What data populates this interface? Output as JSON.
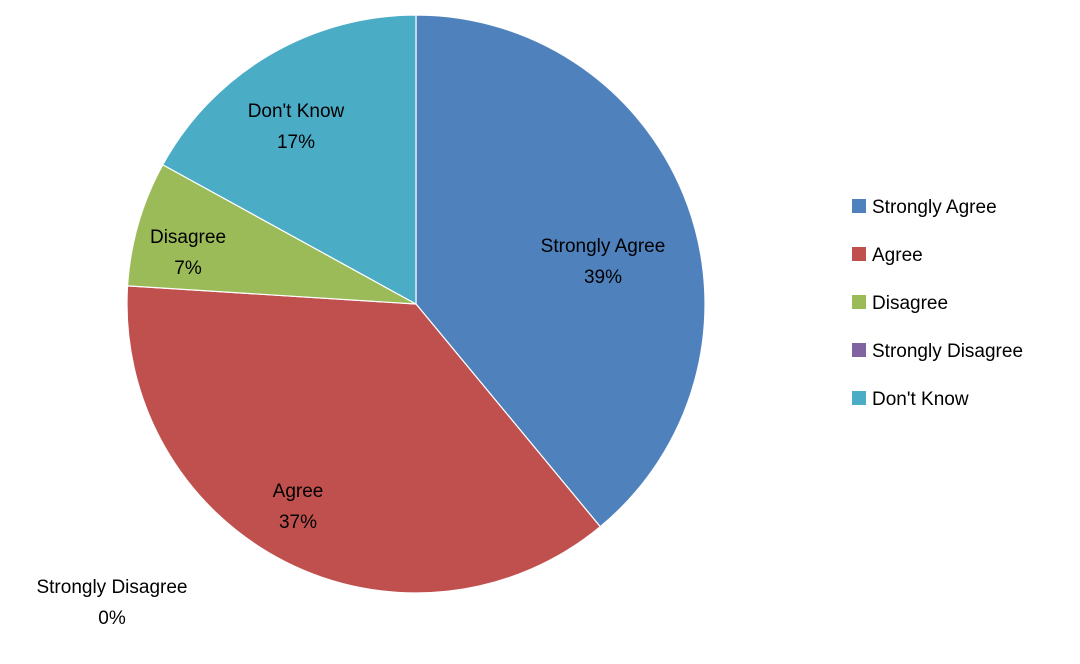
{
  "chart_data": {
    "type": "pie",
    "title": "",
    "categories": [
      "Strongly Agree",
      "Agree",
      "Disagree",
      "Strongly Disagree",
      "Don't Know"
    ],
    "values": [
      39,
      37,
      7,
      0,
      17
    ],
    "value_labels": [
      "39%",
      "37%",
      "7%",
      "0%",
      "17%"
    ],
    "colors": [
      "#4F81BD",
      "#C0504D",
      "#9BBB59",
      "#8064A2",
      "#4BACC6"
    ],
    "start_angle_deg": 0,
    "direction": "clockwise",
    "legend": {
      "position": "right",
      "entries": [
        "Strongly Agree",
        "Agree",
        "Disagree",
        "Strongly Disagree",
        "Don't Know"
      ]
    }
  }
}
